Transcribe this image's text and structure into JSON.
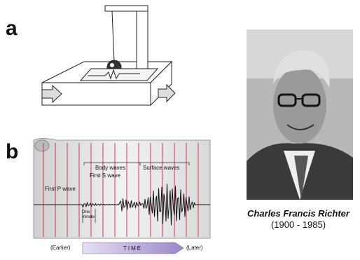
{
  "panel_a": {
    "label": "a"
  },
  "panel_b": {
    "label": "b",
    "first_p_wave": "First P wave",
    "first_s_wave": "First S wave",
    "body_waves": "Body waves",
    "surface_waves": "Surface waves",
    "one_minute": "One minute",
    "earlier": "(Earlier)",
    "time": "TIME",
    "later": "(Later)"
  },
  "portrait": {
    "name": "Charles Francis Richter",
    "years": "(1900 - 1985)"
  }
}
